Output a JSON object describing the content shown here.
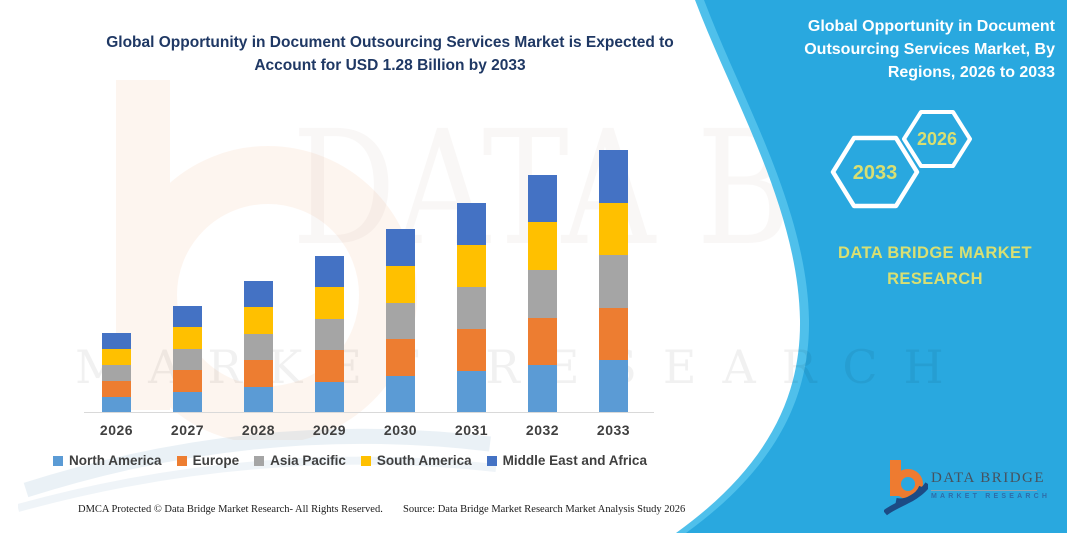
{
  "header": {
    "title_line1": "Global Opportunity in Document Outsourcing Services Market is Expected to",
    "title_line2": "Account for USD 1.28 Billion by 2033"
  },
  "side_panel": {
    "title": "Global Opportunity in Document Outsourcing Services Market, By Regions, 2026 to 2033",
    "hexagons": [
      {
        "label": "2033"
      },
      {
        "label": "2026"
      }
    ],
    "brand_text": "DATA BRIDGE MARKET RESEARCH",
    "colors": {
      "panel": "#29A8DF",
      "panel_edge": "#4FC0EB",
      "accent_text": "#D9DF72"
    }
  },
  "chart_data": {
    "type": "bar",
    "stacked": true,
    "title": "Global Opportunity in Document Outsourcing Services Market, By Regions, 2026 to 2033",
    "unit": "USD Billion",
    "categories": [
      "2026",
      "2027",
      "2028",
      "2029",
      "2030",
      "2031",
      "2032",
      "2033"
    ],
    "series": [
      {
        "name": "North America",
        "color": "#5B9BD5",
        "values": [
          0.078,
          0.104,
          0.129,
          0.153,
          0.179,
          0.205,
          0.232,
          0.256
        ]
      },
      {
        "name": "Europe",
        "color": "#ED7D31",
        "values": [
          0.078,
          0.104,
          0.129,
          0.153,
          0.179,
          0.205,
          0.232,
          0.256
        ]
      },
      {
        "name": "Asia Pacific",
        "color": "#A5A5A5",
        "values": [
          0.078,
          0.104,
          0.129,
          0.153,
          0.179,
          0.205,
          0.232,
          0.256
        ]
      },
      {
        "name": "South America",
        "color": "#FFC000",
        "values": [
          0.078,
          0.104,
          0.129,
          0.153,
          0.179,
          0.205,
          0.232,
          0.256
        ]
      },
      {
        "name": "Middle East and Africa",
        "color": "#4472C4",
        "values": [
          0.078,
          0.104,
          0.129,
          0.153,
          0.179,
          0.205,
          0.232,
          0.256
        ]
      }
    ],
    "totals": [
      0.39,
      0.52,
      0.645,
      0.765,
      0.895,
      1.025,
      1.16,
      1.28
    ],
    "ylim": [
      0,
      1.3
    ],
    "y_axis_visible": false,
    "grid": false,
    "legend_position": "bottom"
  },
  "footer": {
    "left": "DMCA Protected © Data Bridge Market Research-  All Rights Reserved.",
    "right": "Source: Data Bridge Market Research  Market Analysis Study 2026"
  },
  "logo": {
    "wordmark": "DATA BRIDGE",
    "subtitle": "MARKET RESEARCH"
  },
  "watermark": {
    "text_primary": "DATA BRIDGE",
    "text_secondary": "MARKET RESEARCH"
  }
}
